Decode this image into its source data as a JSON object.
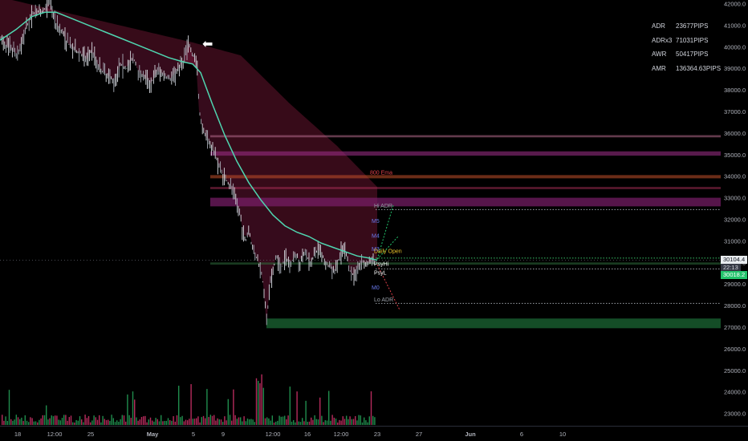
{
  "chart_data": {
    "type": "candlestick",
    "price_axis": {
      "ticks": [
        "42000.0",
        "41000.0",
        "40000.0",
        "39000.0",
        "38000.0",
        "37000.0",
        "36000.0",
        "35000.0",
        "34000.0",
        "33000.0",
        "32000.0",
        "31000.0",
        "30000.0",
        "29000.0",
        "28000.0",
        "27000.0",
        "26000.0",
        "25000.0",
        "24000.0",
        "23000.0"
      ],
      "range": [
        22600,
        42300
      ]
    },
    "time_axis": {
      "ticks": [
        "18",
        "12:00",
        "25",
        "May",
        "5",
        "9",
        "12:00",
        "16",
        "12:00",
        "23",
        "27",
        "Jun",
        "6",
        "10"
      ]
    },
    "close_path": [
      [
        0,
        40400
      ],
      [
        6,
        40100
      ],
      [
        14,
        39900
      ],
      [
        22,
        39600
      ],
      [
        26,
        40100
      ],
      [
        32,
        40800
      ],
      [
        38,
        41300
      ],
      [
        44,
        41700
      ],
      [
        50,
        41500
      ],
      [
        56,
        41800
      ],
      [
        62,
        42100
      ],
      [
        66,
        41600
      ],
      [
        70,
        41000
      ],
      [
        76,
        40800
      ],
      [
        82,
        40300
      ],
      [
        90,
        39900
      ],
      [
        100,
        39700
      ],
      [
        108,
        39400
      ],
      [
        114,
        39900
      ],
      [
        120,
        39300
      ],
      [
        126,
        38900
      ],
      [
        134,
        38700
      ],
      [
        142,
        38400
      ],
      [
        150,
        39200
      ],
      [
        158,
        39000
      ],
      [
        166,
        39500
      ],
      [
        172,
        38900
      ],
      [
        180,
        38600
      ],
      [
        188,
        38300
      ],
      [
        196,
        38900
      ],
      [
        204,
        38700
      ],
      [
        212,
        38500
      ],
      [
        220,
        38900
      ],
      [
        228,
        39300
      ],
      [
        232,
        39900
      ],
      [
        236,
        40100
      ],
      [
        240,
        39600
      ],
      [
        244,
        39400
      ],
      [
        246,
        39000
      ],
      [
        248,
        37000
      ],
      [
        252,
        36300
      ],
      [
        256,
        35900
      ],
      [
        262,
        35500
      ],
      [
        268,
        35000
      ],
      [
        276,
        34200
      ],
      [
        284,
        33700
      ],
      [
        292,
        33200
      ],
      [
        298,
        32300
      ],
      [
        302,
        31600
      ],
      [
        306,
        30900
      ],
      [
        310,
        31600
      ],
      [
        314,
        30700
      ],
      [
        318,
        30300
      ],
      [
        322,
        30000
      ],
      [
        326,
        29500
      ],
      [
        330,
        28400
      ],
      [
        332,
        27100
      ],
      [
        336,
        28900
      ],
      [
        340,
        29500
      ],
      [
        344,
        30300
      ],
      [
        350,
        29700
      ],
      [
        356,
        30200
      ],
      [
        362,
        29900
      ],
      [
        368,
        30400
      ],
      [
        374,
        30000
      ],
      [
        380,
        30600
      ],
      [
        386,
        29900
      ],
      [
        392,
        30400
      ],
      [
        398,
        30700
      ],
      [
        404,
        30100
      ],
      [
        410,
        29800
      ],
      [
        416,
        29600
      ],
      [
        422,
        30100
      ],
      [
        428,
        30700
      ],
      [
        432,
        30300
      ],
      [
        436,
        29600
      ],
      [
        440,
        29400
      ],
      [
        446,
        29800
      ],
      [
        452,
        30000
      ],
      [
        458,
        29900
      ],
      [
        464,
        30100
      ],
      [
        468,
        30050
      ]
    ],
    "ema_path": [
      [
        0,
        40300
      ],
      [
        20,
        40800
      ],
      [
        40,
        41400
      ],
      [
        56,
        41600
      ],
      [
        70,
        41600
      ],
      [
        90,
        41300
      ],
      [
        110,
        41000
      ],
      [
        130,
        40700
      ],
      [
        150,
        40400
      ],
      [
        170,
        40100
      ],
      [
        190,
        39800
      ],
      [
        210,
        39500
      ],
      [
        228,
        39300
      ],
      [
        240,
        39200
      ],
      [
        250,
        38800
      ],
      [
        265,
        37300
      ],
      [
        280,
        35900
      ],
      [
        295,
        34700
      ],
      [
        310,
        33700
      ],
      [
        325,
        32900
      ],
      [
        340,
        32200
      ],
      [
        355,
        31700
      ],
      [
        370,
        31400
      ],
      [
        385,
        31200
      ],
      [
        400,
        30900
      ],
      [
        415,
        30700
      ],
      [
        430,
        30500
      ],
      [
        445,
        30300
      ],
      [
        460,
        30200
      ],
      [
        470,
        30100
      ]
    ],
    "cloud_upper": [
      [
        0,
        42300
      ],
      [
        240,
        40200
      ],
      [
        300,
        39600
      ],
      [
        360,
        37400
      ],
      [
        420,
        35400
      ],
      [
        470,
        33500
      ]
    ],
    "zones": [
      {
        "top": 35900,
        "bottom": 35800,
        "color": "#b36a8a",
        "alpha": 0.55
      },
      {
        "top": 35150,
        "bottom": 34950,
        "color": "#a0308a",
        "alpha": 0.55
      },
      {
        "top": 34050,
        "bottom": 33900,
        "color": "#c2502a",
        "alpha": 0.55
      },
      {
        "top": 33500,
        "bottom": 33400,
        "color": "#b0305a",
        "alpha": 0.5
      },
      {
        "top": 33000,
        "bottom": 32600,
        "color": "#7a1e6a",
        "alpha": 0.7
      },
      {
        "top": 30000,
        "bottom": 29900,
        "color": "#2e6b3a",
        "alpha": 0.55
      },
      {
        "top": 27400,
        "bottom": 26950,
        "color": "#175a2e",
        "alpha": 0.85
      }
    ],
    "dotted_levels": [
      {
        "price": 32450,
        "color": "#9aa0a8"
      },
      {
        "price": 30200,
        "color": "#3ac26a"
      },
      {
        "price": 29700,
        "color": "#9aa0a8"
      },
      {
        "price": 28100,
        "color": "#9aa0a8"
      }
    ],
    "labels": [
      {
        "text": "800 Ema",
        "price": 34200,
        "color": "#e0404a"
      },
      {
        "text": "Hi ADR",
        "price": 32650,
        "color": "#9aa0a8"
      },
      {
        "text": "M5",
        "price": 31950,
        "color": "#6b7bf0"
      },
      {
        "text": "M4",
        "price": 31250,
        "color": "#6b7bf0"
      },
      {
        "text": "M3",
        "price": 30650,
        "color": "#6b7bf0"
      },
      {
        "text": "Daily Open",
        "price": 30550,
        "color": "#e8c22a"
      },
      {
        "text": "PsyHi",
        "price": 29950,
        "color": "#ffffff"
      },
      {
        "text": "PsyL",
        "price": 29550,
        "color": "#ffffff"
      },
      {
        "text": "M0",
        "price": 28850,
        "color": "#6b7bf0"
      },
      {
        "text": "Lo ADR",
        "price": 28300,
        "color": "#9aa0a8"
      }
    ],
    "price_tags": [
      {
        "text": "30104.4",
        "price": 30104.4,
        "bg": "#e8ecef",
        "fg": "#131722"
      },
      {
        "text": "22:13",
        "price": 29750,
        "bg": "#363a45",
        "fg": "#d1d4dc"
      },
      {
        "text": "30018.2",
        "price": 29420,
        "bg": "#22c36b",
        "fg": "#ffffff"
      }
    ]
  },
  "stats": [
    {
      "label": "ADR",
      "value": "23677PIPS"
    },
    {
      "label": "ADRx3",
      "value": "71031PIPS"
    },
    {
      "label": "AWR",
      "value": "50417PIPS"
    },
    {
      "label": "AMR",
      "value": "136364.63PIPS"
    }
  ],
  "marker_arrow": "⬅",
  "colors": {
    "background": "#000000",
    "ema": "#4fd6b0",
    "cloud": "#7a1838",
    "candle": "#c3c6cc",
    "volume_up": "#26a65b",
    "volume_down": "#d6336c",
    "axis_text": "#b2b5be"
  }
}
